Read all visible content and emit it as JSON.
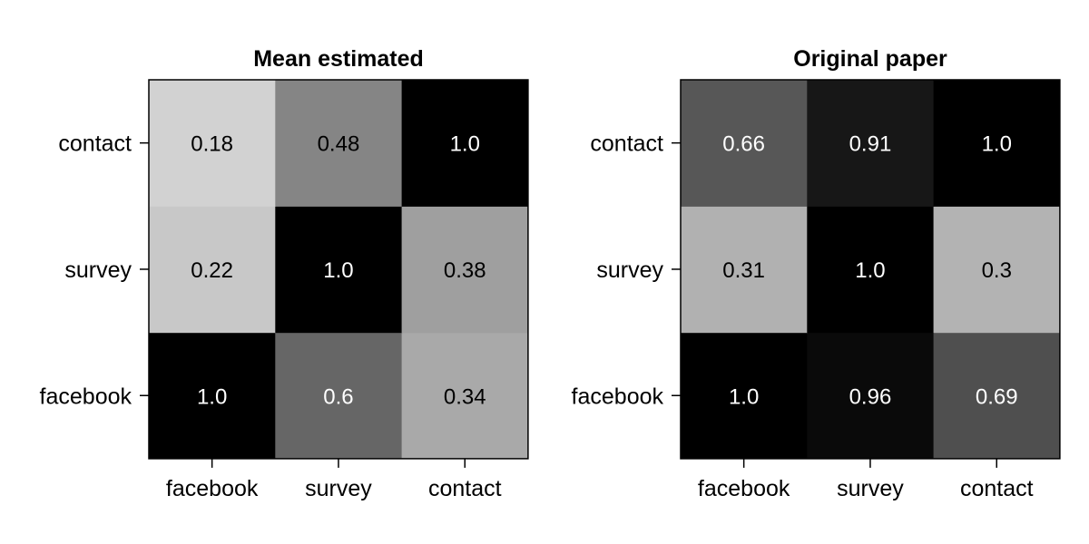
{
  "chart_data": [
    {
      "type": "heatmap",
      "title": "Mean estimated",
      "x_categories": [
        "facebook",
        "survey",
        "contact"
      ],
      "y_categories": [
        "facebook",
        "survey",
        "contact"
      ],
      "values": [
        [
          "1.0",
          "0.6",
          "0.34"
        ],
        [
          "0.22",
          "1.0",
          "0.38"
        ],
        [
          "0.18",
          "0.48",
          "1.0"
        ]
      ],
      "colorscale": "grayscale (higher = darker)",
      "grid": false
    },
    {
      "type": "heatmap",
      "title": "Original paper",
      "x_categories": [
        "facebook",
        "survey",
        "contact"
      ],
      "y_categories": [
        "facebook",
        "survey",
        "contact"
      ],
      "values": [
        [
          "1.0",
          "0.96",
          "0.69"
        ],
        [
          "0.31",
          "1.0",
          "0.3"
        ],
        [
          "0.66",
          "0.91",
          "1.0"
        ]
      ],
      "colorscale": "grayscale (higher = darker)",
      "grid": false
    }
  ]
}
